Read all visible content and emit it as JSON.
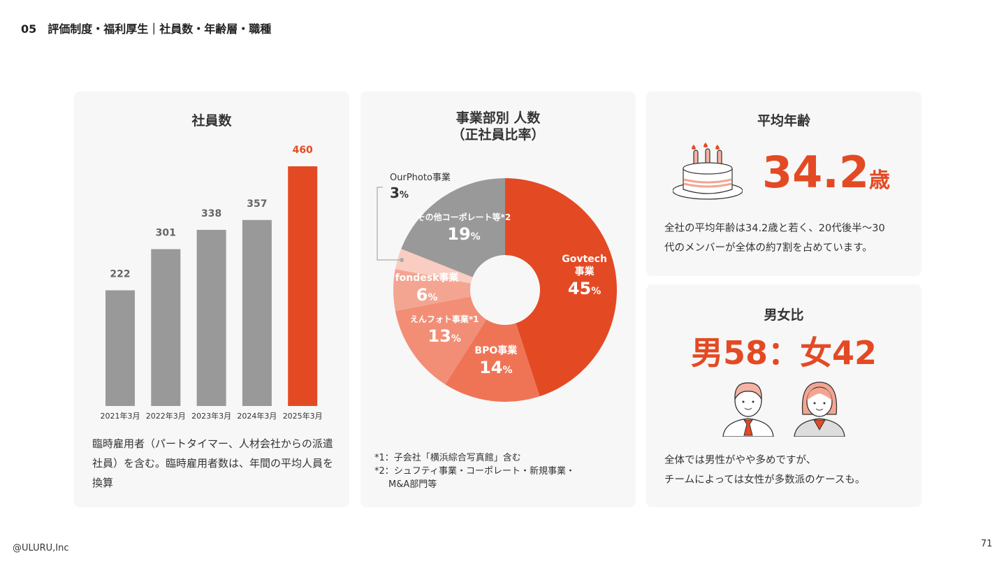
{
  "header": {
    "section_num": "05",
    "title": "評価制度・福利厚生｜社員数・年齢層・職種"
  },
  "employees": {
    "title": "社員数",
    "note": "臨時雇用者（パートタイマー、人材会社からの派遣社員）を含む。臨時雇用者数は、年間の平均人員を換算"
  },
  "departments": {
    "title_line1": "事業部別 人数",
    "title_line2": "（正社員比率）",
    "footnote1": "*1：子会社「横浜綜合写真館」含む",
    "footnote2": "*2：シュフティ事業・コーポレート・新規事業・",
    "footnote3": "M&A部門等"
  },
  "age": {
    "title": "平均年齢",
    "value": "34.2",
    "unit": "歳",
    "desc_line1": "全社の平均年齢は34.2歳と若く、20代後半〜30",
    "desc_line2": "代のメンバーが全体の約7割を占めています。"
  },
  "gender": {
    "title": "男女比",
    "ratio": "男58：女42",
    "desc_line1": "全体では男性がやや多めですが、",
    "desc_line2": "チームによっては女性が多数派のケースも。"
  },
  "footer": {
    "copyright": "@ULURU,Inc",
    "page": "71"
  },
  "colors": {
    "accent": "#e34a24",
    "gray": "#999999"
  },
  "chart_data": [
    {
      "type": "bar",
      "title": "社員数",
      "categories": [
        "2021年3月",
        "2022年3月",
        "2023年3月",
        "2024年3月",
        "2025年3月"
      ],
      "values": [
        222,
        301,
        338,
        357,
        460
      ],
      "value_labels": [
        "222",
        "301",
        "338",
        "357",
        "460"
      ],
      "colors": [
        "#999999",
        "#999999",
        "#999999",
        "#999999",
        "#e34a24"
      ],
      "ylim": [
        0,
        460
      ]
    },
    {
      "type": "pie",
      "title": "事業部別 人数（正社員比率）",
      "slices": [
        {
          "label": "Govtech事業",
          "line1": "Govtech",
          "line2": "事業",
          "value": 45,
          "pct": "45",
          "color": "#e34a24"
        },
        {
          "label": "BPO事業",
          "line1": "BPO事業",
          "line2": "",
          "value": 14,
          "pct": "14",
          "color": "#ef7456"
        },
        {
          "label": "えんフォト事業*1",
          "line1": "えんフォト",
          "line2": "事業*1",
          "value": 13,
          "pct": "13",
          "color": "#f28e76"
        },
        {
          "label": "fondesk事業",
          "line1": "fondesk事業",
          "line2": "",
          "value": 6,
          "pct": "6",
          "color": "#f4a592"
        },
        {
          "label": "OurPhoto事業",
          "line1": "OurPhoto事業",
          "line2": "",
          "value": 3,
          "pct": "3",
          "color": "#f9cdc2"
        },
        {
          "label": "その他コーポレート等*2",
          "line1": "その他",
          "line2": "コーポレート等*2",
          "value": 19,
          "pct": "19",
          "color": "#999999"
        }
      ],
      "unit": "%"
    }
  ]
}
